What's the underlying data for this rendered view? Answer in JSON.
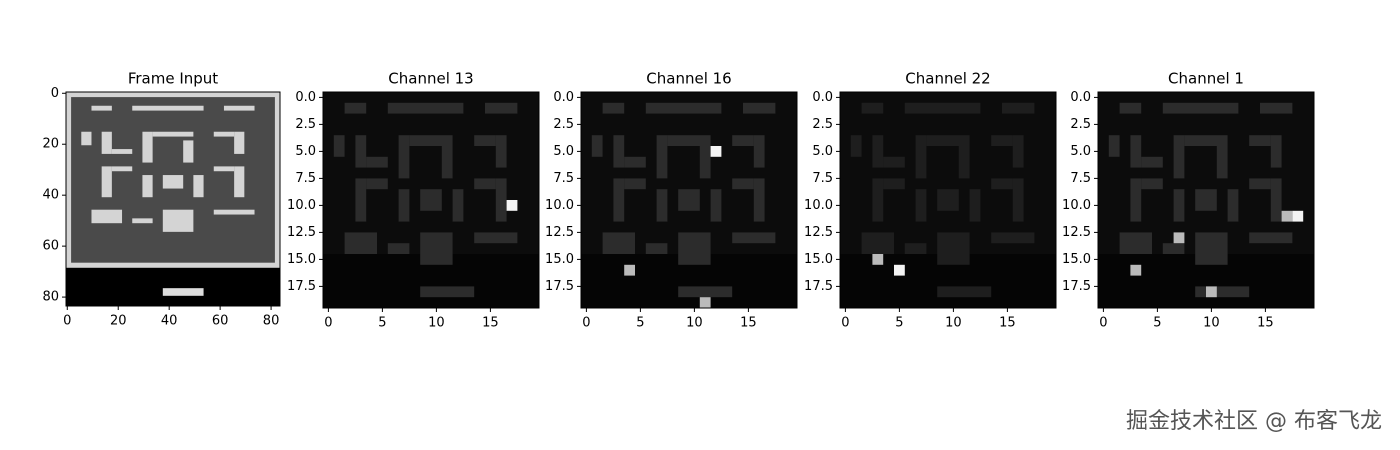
{
  "chart_data": [
    {
      "type": "image",
      "title": "Frame Input",
      "xlim": [
        -0.5,
        83.5
      ],
      "ylim": [
        83.5,
        -0.5
      ],
      "xticks": [
        0,
        20,
        40,
        60,
        80
      ],
      "yticks": [
        0,
        20,
        40,
        60,
        80
      ]
    },
    {
      "type": "image",
      "title": "Channel 13",
      "xlim": [
        -0.5,
        19.5
      ],
      "ylim": [
        19.5,
        -0.5
      ],
      "xticks": [
        0,
        5,
        10,
        15
      ],
      "yticks": [
        {
          "value": 0,
          "label": "0.0"
        },
        {
          "value": 2.5,
          "label": "2.5"
        },
        {
          "value": 5,
          "label": "5.0"
        },
        {
          "value": 7.5,
          "label": "7.5"
        },
        {
          "value": 10,
          "label": "10.0"
        },
        {
          "value": 12.5,
          "label": "12.5"
        },
        {
          "value": 15,
          "label": "15.0"
        },
        {
          "value": 17.5,
          "label": "17.5"
        }
      ]
    },
    {
      "type": "image",
      "title": "Channel 16",
      "xlim": [
        -0.5,
        19.5
      ],
      "ylim": [
        19.5,
        -0.5
      ],
      "xticks": [
        0,
        5,
        10,
        15
      ],
      "yticks": [
        {
          "value": 0,
          "label": "0.0"
        },
        {
          "value": 2.5,
          "label": "2.5"
        },
        {
          "value": 5,
          "label": "5.0"
        },
        {
          "value": 7.5,
          "label": "7.5"
        },
        {
          "value": 10,
          "label": "10.0"
        },
        {
          "value": 12.5,
          "label": "12.5"
        },
        {
          "value": 15,
          "label": "15.0"
        },
        {
          "value": 17.5,
          "label": "17.5"
        }
      ]
    },
    {
      "type": "image",
      "title": "Channel 22",
      "xlim": [
        -0.5,
        19.5
      ],
      "ylim": [
        19.5,
        -0.5
      ],
      "xticks": [
        0,
        5,
        10,
        15
      ],
      "yticks": [
        {
          "value": 0,
          "label": "0.0"
        },
        {
          "value": 2.5,
          "label": "2.5"
        },
        {
          "value": 5,
          "label": "5.0"
        },
        {
          "value": 7.5,
          "label": "7.5"
        },
        {
          "value": 10,
          "label": "10.0"
        },
        {
          "value": 12.5,
          "label": "12.5"
        },
        {
          "value": 15,
          "label": "15.0"
        },
        {
          "value": 17.5,
          "label": "17.5"
        }
      ]
    },
    {
      "type": "image",
      "title": "Channel 1",
      "xlim": [
        -0.5,
        19.5
      ],
      "ylim": [
        19.5,
        -0.5
      ],
      "xticks": [
        0,
        5,
        10,
        15
      ],
      "yticks": [
        {
          "value": 0,
          "label": "0.0"
        },
        {
          "value": 2.5,
          "label": "2.5"
        },
        {
          "value": 5,
          "label": "5.0"
        },
        {
          "value": 7.5,
          "label": "7.5"
        },
        {
          "value": 10,
          "label": "10.0"
        },
        {
          "value": 12.5,
          "label": "12.5"
        },
        {
          "value": 15,
          "label": "15.0"
        },
        {
          "value": 17.5,
          "label": "17.5"
        }
      ]
    }
  ],
  "watermark": "掘金技术社区 @ 布客飞龙"
}
